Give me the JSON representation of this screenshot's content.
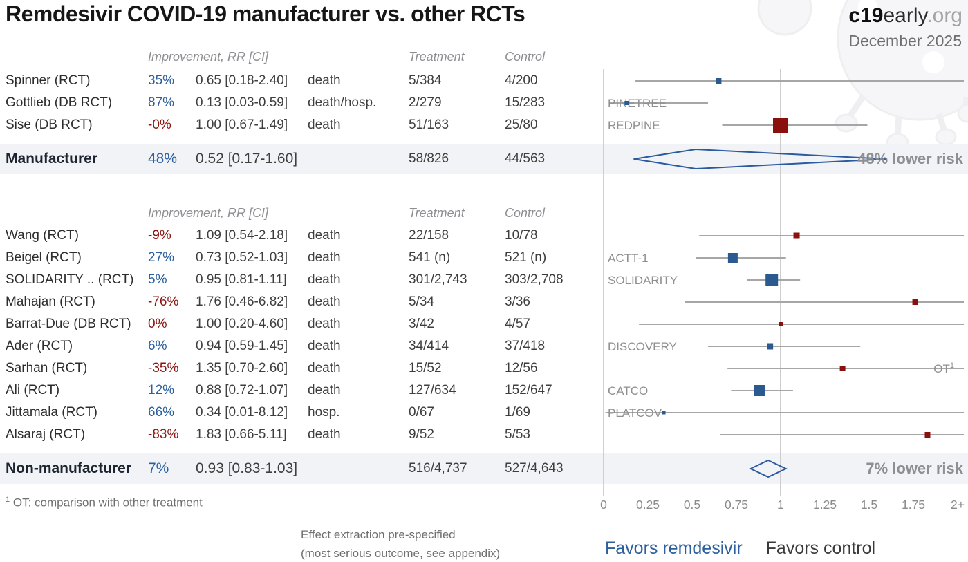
{
  "header": {
    "title": "Remdesivir COVID-19 manufacturer vs. other RCTs",
    "brand_bold": "c19",
    "brand_regular": "early",
    "brand_suffix": ".org",
    "date": "December 2025"
  },
  "columns": {
    "improvement": "Improvement, RR [CI]",
    "treatment": "Treatment",
    "control": "Control"
  },
  "chart_data": {
    "type": "forest",
    "title": "Remdesivir COVID-19 manufacturer vs. other RCTs",
    "axis": {
      "tick_labels": [
        "0",
        "0.25",
        "0.5",
        "0.75",
        "1",
        "1.25",
        "1.5",
        "1.75",
        "2+"
      ],
      "tick_values": [
        0,
        0.25,
        0.5,
        0.75,
        1,
        1.25,
        1.5,
        1.75,
        2
      ],
      "null_line_value": 1,
      "xlim": [
        0,
        2
      ]
    },
    "sections": [
      {
        "name": "Manufacturer",
        "studies": [
          {
            "study": "Spinner (RCT)",
            "tone": "blue",
            "improvement": "35%",
            "rr_text": "0.65 [0.18-2.40]",
            "outcome": "death",
            "treatment": "5/384",
            "control": "4/200",
            "rr": 0.65,
            "ci_low": 0.18,
            "ci_high": 2.4,
            "weight": 8,
            "marker": "blue",
            "trial": "",
            "trial_side": "left",
            "trial_sup": ""
          },
          {
            "study": "Gottlieb (DB RCT)",
            "tone": "blue",
            "improvement": "87%",
            "rr_text": "0.13 [0.03-0.59]",
            "outcome": "death/hosp.",
            "treatment": "2/279",
            "control": "15/283",
            "rr": 0.13,
            "ci_low": 0.03,
            "ci_high": 0.59,
            "weight": 6,
            "marker": "blue",
            "trial": "PINETREE",
            "trial_side": "left",
            "trial_sup": ""
          },
          {
            "study": "Sise (DB RCT)",
            "tone": "red",
            "improvement": "-0%",
            "rr_text": "1.00 [0.67-1.49]",
            "outcome": "death",
            "treatment": "51/163",
            "control": "25/80",
            "rr": 1.0,
            "ci_low": 0.67,
            "ci_high": 1.49,
            "weight": 22,
            "marker": "red",
            "trial": "REDPINE",
            "trial_side": "left",
            "trial_sup": ""
          }
        ],
        "summary": {
          "label": "Manufacturer",
          "improvement": "48%",
          "rr_text": "0.52 [0.17-1.60]",
          "treatment": "58/826",
          "control": "44/563",
          "rr": 0.52,
          "ci_low": 0.17,
          "ci_high": 1.6,
          "risk_text": "48% lower risk",
          "diamond_half_height": 14
        }
      },
      {
        "name": "Non-manufacturer",
        "studies": [
          {
            "study": "Wang (RCT)",
            "tone": "red",
            "improvement": "-9%",
            "rr_text": "1.09 [0.54-2.18]",
            "outcome": "death",
            "treatment": "22/158",
            "control": "10/78",
            "rr": 1.09,
            "ci_low": 0.54,
            "ci_high": 2.18,
            "weight": 9,
            "marker": "red",
            "trial": "",
            "trial_side": "left",
            "trial_sup": ""
          },
          {
            "study": "Beigel (RCT)",
            "tone": "blue",
            "improvement": "27%",
            "rr_text": "0.73 [0.52-1.03]",
            "outcome": "death",
            "treatment": "541 (n)",
            "control": "521 (n)",
            "rr": 0.73,
            "ci_low": 0.52,
            "ci_high": 1.03,
            "weight": 14,
            "marker": "blue",
            "trial": "ACTT-1",
            "trial_side": "left",
            "trial_sup": ""
          },
          {
            "study": "SOLIDARITY .. (RCT)",
            "tone": "blue",
            "improvement": "5%",
            "rr_text": "0.95 [0.81-1.11]",
            "outcome": "death",
            "treatment": "301/2,743",
            "control": "303/2,708",
            "rr": 0.95,
            "ci_low": 0.81,
            "ci_high": 1.11,
            "weight": 18,
            "marker": "blue",
            "trial": "SOLIDARITY",
            "trial_side": "left",
            "trial_sup": ""
          },
          {
            "study": "Mahajan (RCT)",
            "tone": "red",
            "improvement": "-76%",
            "rr_text": "1.76 [0.46-6.82]",
            "outcome": "death",
            "treatment": "5/34",
            "control": "3/36",
            "rr": 1.76,
            "ci_low": 0.46,
            "ci_high": 6.82,
            "weight": 8,
            "marker": "red",
            "trial": "",
            "trial_side": "left",
            "trial_sup": ""
          },
          {
            "study": "Barrat-Due (DB RCT)",
            "tone": "red",
            "improvement": "0%",
            "rr_text": "1.00 [0.20-4.60]",
            "outcome": "death",
            "treatment": "3/42",
            "control": "4/57",
            "rr": 1.0,
            "ci_low": 0.2,
            "ci_high": 4.6,
            "weight": 6,
            "marker": "red",
            "trial": "",
            "trial_side": "left",
            "trial_sup": ""
          },
          {
            "study": "Ader (RCT)",
            "tone": "blue",
            "improvement": "6%",
            "rr_text": "0.94 [0.59-1.45]",
            "outcome": "death",
            "treatment": "34/414",
            "control": "37/418",
            "rr": 0.94,
            "ci_low": 0.59,
            "ci_high": 1.45,
            "weight": 9,
            "marker": "blue",
            "trial": "DISCOVERY",
            "trial_side": "left",
            "trial_sup": ""
          },
          {
            "study": "Sarhan (RCT)",
            "tone": "red",
            "improvement": "-35%",
            "rr_text": "1.35 [0.70-2.60]",
            "outcome": "death",
            "treatment": "15/52",
            "control": "12/56",
            "rr": 1.35,
            "ci_low": 0.7,
            "ci_high": 2.6,
            "weight": 8,
            "marker": "red",
            "trial": "OT",
            "trial_side": "right",
            "trial_sup": "1"
          },
          {
            "study": "Ali (RCT)",
            "tone": "blue",
            "improvement": "12%",
            "rr_text": "0.88 [0.72-1.07]",
            "outcome": "death",
            "treatment": "127/634",
            "control": "152/647",
            "rr": 0.88,
            "ci_low": 0.72,
            "ci_high": 1.07,
            "weight": 16,
            "marker": "blue",
            "trial": "CATCO",
            "trial_side": "left",
            "trial_sup": ""
          },
          {
            "study": "Jittamala (RCT)",
            "tone": "blue",
            "improvement": "66%",
            "rr_text": "0.34 [0.01-8.12]",
            "outcome": "hosp.",
            "treatment": "0/67",
            "control": "1/69",
            "rr": 0.34,
            "ci_low": 0.01,
            "ci_high": 8.12,
            "weight": 5,
            "marker": "blue",
            "trial": "PLATCOV",
            "trial_side": "left",
            "trial_sup": ""
          },
          {
            "study": "Alsaraj (RCT)",
            "tone": "red",
            "improvement": "-83%",
            "rr_text": "1.83 [0.66-5.11]",
            "outcome": "death",
            "treatment": "9/52",
            "control": "5/53",
            "rr": 1.83,
            "ci_low": 0.66,
            "ci_high": 5.11,
            "weight": 8,
            "marker": "red",
            "trial": "",
            "trial_side": "left",
            "trial_sup": ""
          }
        ],
        "summary": {
          "label": "Non-manufacturer",
          "improvement": "7%",
          "rr_text": "0.93 [0.83-1.03]",
          "treatment": "516/4,737",
          "control": "527/4,643",
          "rr": 0.93,
          "ci_low": 0.83,
          "ci_high": 1.03,
          "risk_text": "7% lower risk",
          "diamond_half_height": 12
        }
      }
    ],
    "footnote": {
      "sup": "1",
      "text": "OT: comparison with other treatment"
    }
  },
  "footer": {
    "note_line1": "Effect extraction pre-specified",
    "note_line2": "(most serious outcome, see appendix)",
    "favors_left": "Favors remdesivir",
    "favors_right": "Favors control"
  },
  "colors": {
    "accent_blue": "#2b5f9e",
    "accent_red": "#8b1510",
    "marker_blue": "#2a5a8f",
    "marker_red": "#8a100e",
    "diamond_outline": "#2a5a9f",
    "ci_line": "#a6a6a6",
    "zero_line": "#c2c2c2",
    "null_line": "#cdcdcd",
    "summary_band": "#f1f3f6",
    "muted_text": "#8f8f93"
  }
}
